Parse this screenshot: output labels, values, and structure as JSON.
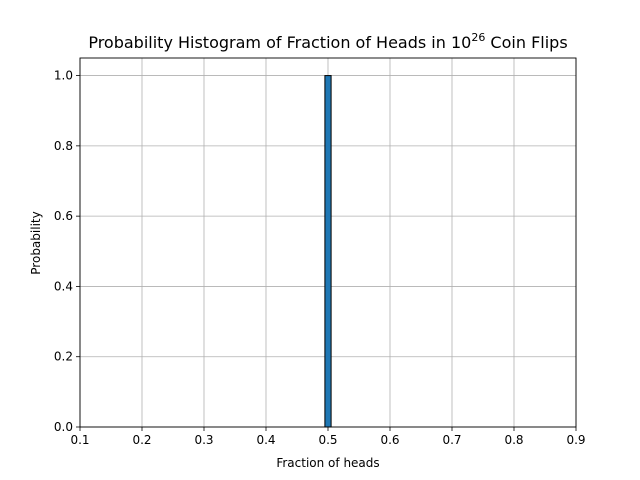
{
  "chart_data": {
    "type": "bar",
    "title_prefix": "Probability Histogram of Fraction of Heads in 10",
    "title_exponent": "26",
    "title_suffix": " Coin Flips",
    "xlabel": "Fraction of heads",
    "ylabel": "Probability",
    "xlim": [
      0.1,
      0.9
    ],
    "ylim": [
      0.0,
      1.05
    ],
    "xticks": [
      "0.1",
      "0.2",
      "0.3",
      "0.4",
      "0.5",
      "0.6",
      "0.7",
      "0.8",
      "0.9"
    ],
    "yticks": [
      "0.0",
      "0.2",
      "0.4",
      "0.6",
      "0.8",
      "1.0"
    ],
    "grid": true,
    "bars": [
      {
        "x_start": 0.495,
        "x_end": 0.505,
        "value": 1.0
      }
    ],
    "bar_color": "#1f77b4",
    "bar_edge_color": "#000000"
  }
}
